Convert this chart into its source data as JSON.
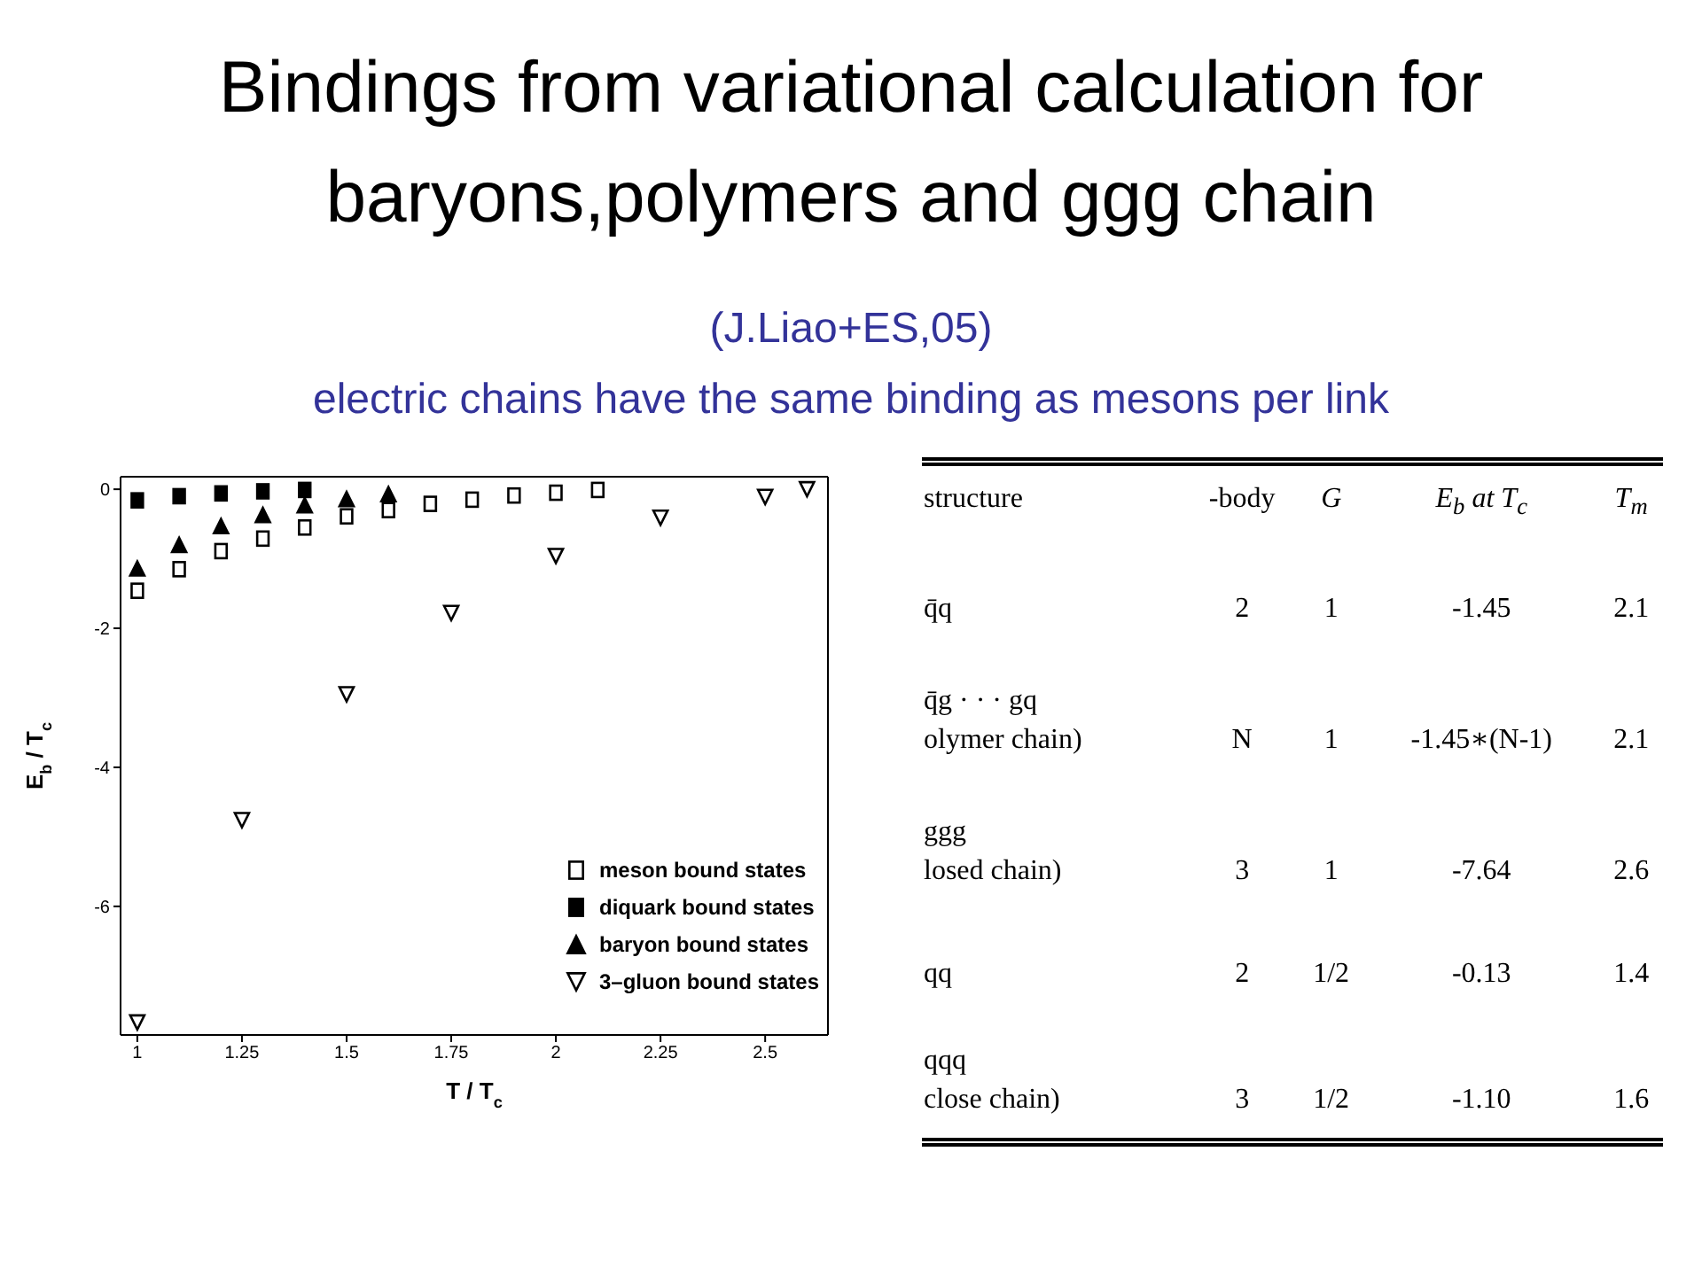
{
  "chart_data": [
    {
      "type": "scatter",
      "title": "Bindings from variational calculation for baryons,polymers and ggg chain",
      "subtitle": "(J.Liao+ES,05)",
      "annotations": [
        "electric chains have the same binding as mesons per link"
      ],
      "xlabel": "T / T$_{c}$",
      "ylabel": "E$_{b}$ / T$_{c}$",
      "xlim": [
        0.96,
        2.65
      ],
      "xticks": [
        1,
        1.25,
        1.5,
        1.75,
        2,
        2.25,
        2.5
      ],
      "ylim": [
        -7.85,
        0.18
      ],
      "yticks": [
        0,
        -2,
        -4,
        -6
      ],
      "legend": "bottom right",
      "series": [
        {
          "name": "meson bound states",
          "color": "#ffffff",
          "marker": "square",
          "x": [
            1.0,
            1.1,
            1.2,
            1.3,
            1.4,
            1.5,
            1.6,
            1.7,
            1.8,
            1.9,
            2.0,
            2.1
          ],
          "values": [
            -1.46,
            -1.15,
            -0.89,
            -0.71,
            -0.55,
            -0.39,
            -0.3,
            -0.21,
            -0.15,
            -0.09,
            -0.05,
            -0.01
          ]
        },
        {
          "name": "diquark bound states",
          "color": "#000000",
          "marker": "square",
          "x": [
            1.0,
            1.1,
            1.2,
            1.3,
            1.4
          ],
          "values": [
            -0.16,
            -0.1,
            -0.06,
            -0.03,
            -0.01
          ]
        },
        {
          "name": "baryon bound states",
          "color": "#000000",
          "marker": "triangle",
          "x": [
            1.0,
            1.1,
            1.2,
            1.3,
            1.4,
            1.5,
            1.6
          ],
          "values": [
            -1.14,
            -0.8,
            -0.53,
            -0.37,
            -0.23,
            -0.14,
            -0.07
          ]
        },
        {
          "name": "3–gluon bound states",
          "color": "#ffffff",
          "marker": "triangle-down",
          "x": [
            1.0,
            1.25,
            1.5,
            1.75,
            2.0,
            2.25,
            2.5,
            2.6
          ],
          "values": [
            -7.67,
            -4.76,
            -2.95,
            -1.78,
            -0.96,
            -0.41,
            -0.11,
            0.0
          ]
        }
      ]
    },
    {
      "type": "other",
      "categories": [
        "structure",
        "-body",
        "G",
        "E$_{b}$ at T$_{c}$",
        "T$_{m}$"
      ],
      "annotations": [
        "q̄q",
        "2",
        "1",
        "-1.45",
        "2.1",
        "q̄g · · · gq\nolymer chain)",
        "N",
        "1",
        "-1.45∗(N-1)",
        "2.1",
        "ggg\nlosed chain)",
        "3",
        "1",
        "-7.64",
        "2.6",
        "qq",
        "2",
        "1/2",
        "-0.13",
        "1.4",
        "qqq\nclose chain)",
        "3",
        "1/2",
        "-1.10",
        "1.6"
      ]
    }
  ]
}
